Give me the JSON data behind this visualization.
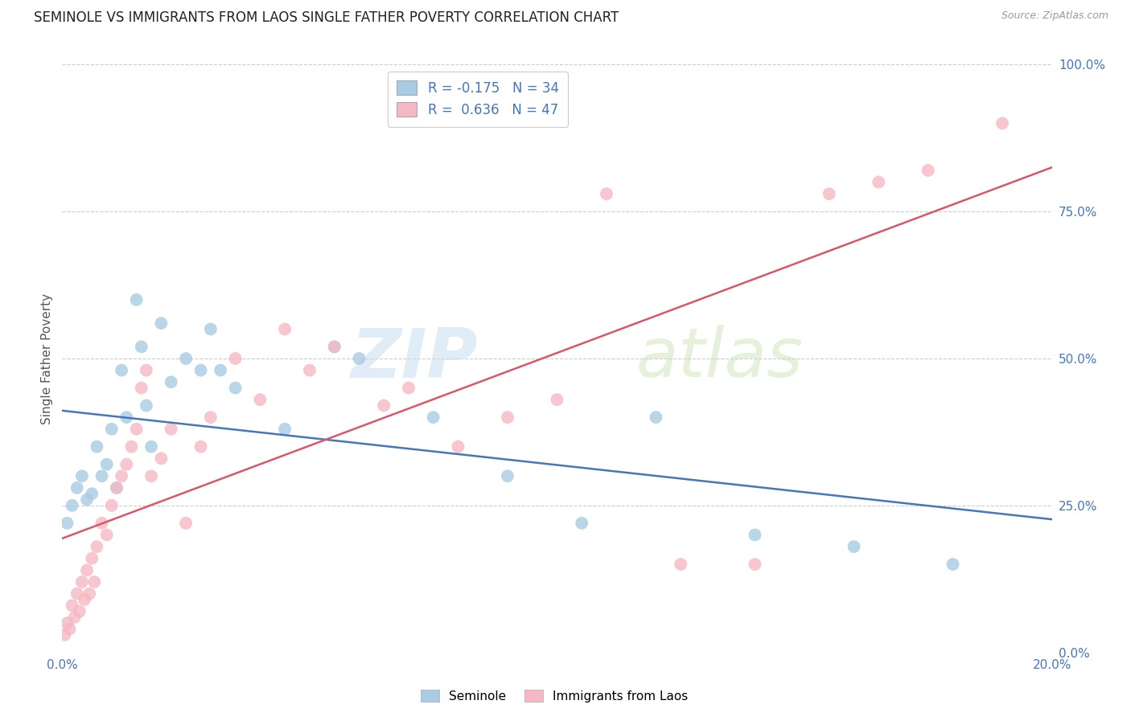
{
  "title": "SEMINOLE VS IMMIGRANTS FROM LAOS SINGLE FATHER POVERTY CORRELATION CHART",
  "source": "Source: ZipAtlas.com",
  "ylabel": "Single Father Poverty",
  "ytick_values": [
    0,
    25,
    50,
    75,
    100
  ],
  "xlim": [
    0,
    20
  ],
  "ylim": [
    0,
    100
  ],
  "watermark_text": "ZIP",
  "watermark_text2": "atlas",
  "legend_line1": "R = -0.175   N = 34",
  "legend_line2": "R =  0.636   N = 47",
  "series1_label": "Seminole",
  "series2_label": "Immigrants from Laos",
  "series1_color": "#a8cce4",
  "series2_color": "#f5b8c4",
  "series1_line_color": "#4477bb",
  "series2_line_color": "#dd5566",
  "seminole_x": [
    0.1,
    0.2,
    0.3,
    0.4,
    0.5,
    0.6,
    0.7,
    0.8,
    0.9,
    1.0,
    1.1,
    1.2,
    1.3,
    1.5,
    1.6,
    1.7,
    1.8,
    2.0,
    2.2,
    2.5,
    2.8,
    3.0,
    3.2,
    3.5,
    4.5,
    5.5,
    6.0,
    7.5,
    9.0,
    10.5,
    12.0,
    14.0,
    16.0,
    18.0
  ],
  "seminole_y": [
    22,
    25,
    28,
    30,
    26,
    27,
    35,
    30,
    32,
    38,
    28,
    48,
    40,
    60,
    52,
    42,
    35,
    56,
    46,
    50,
    48,
    55,
    48,
    45,
    38,
    52,
    50,
    40,
    30,
    22,
    40,
    20,
    18,
    15
  ],
  "laos_x": [
    0.05,
    0.1,
    0.15,
    0.2,
    0.25,
    0.3,
    0.35,
    0.4,
    0.45,
    0.5,
    0.55,
    0.6,
    0.65,
    0.7,
    0.8,
    0.9,
    1.0,
    1.1,
    1.2,
    1.3,
    1.4,
    1.5,
    1.6,
    1.7,
    1.8,
    2.0,
    2.2,
    2.5,
    2.8,
    3.0,
    3.5,
    4.0,
    4.5,
    5.0,
    5.5,
    6.5,
    7.0,
    8.0,
    9.0,
    10.0,
    11.0,
    12.5,
    14.0,
    15.5,
    16.5,
    17.5,
    19.0
  ],
  "laos_y": [
    3,
    5,
    4,
    8,
    6,
    10,
    7,
    12,
    9,
    14,
    10,
    16,
    12,
    18,
    22,
    20,
    25,
    28,
    30,
    32,
    35,
    38,
    45,
    48,
    30,
    33,
    38,
    22,
    35,
    40,
    50,
    43,
    55,
    48,
    52,
    42,
    45,
    35,
    40,
    43,
    78,
    15,
    15,
    78,
    80,
    82,
    90
  ],
  "grid_color": "#cccccc",
  "bg_color": "#ffffff",
  "title_fontsize": 12,
  "axis_tick_color": "#4477bb",
  "ylabel_color": "#555555",
  "source_color": "#999999",
  "legend_text_color": "#333333",
  "legend_num_color": "#4477bb"
}
